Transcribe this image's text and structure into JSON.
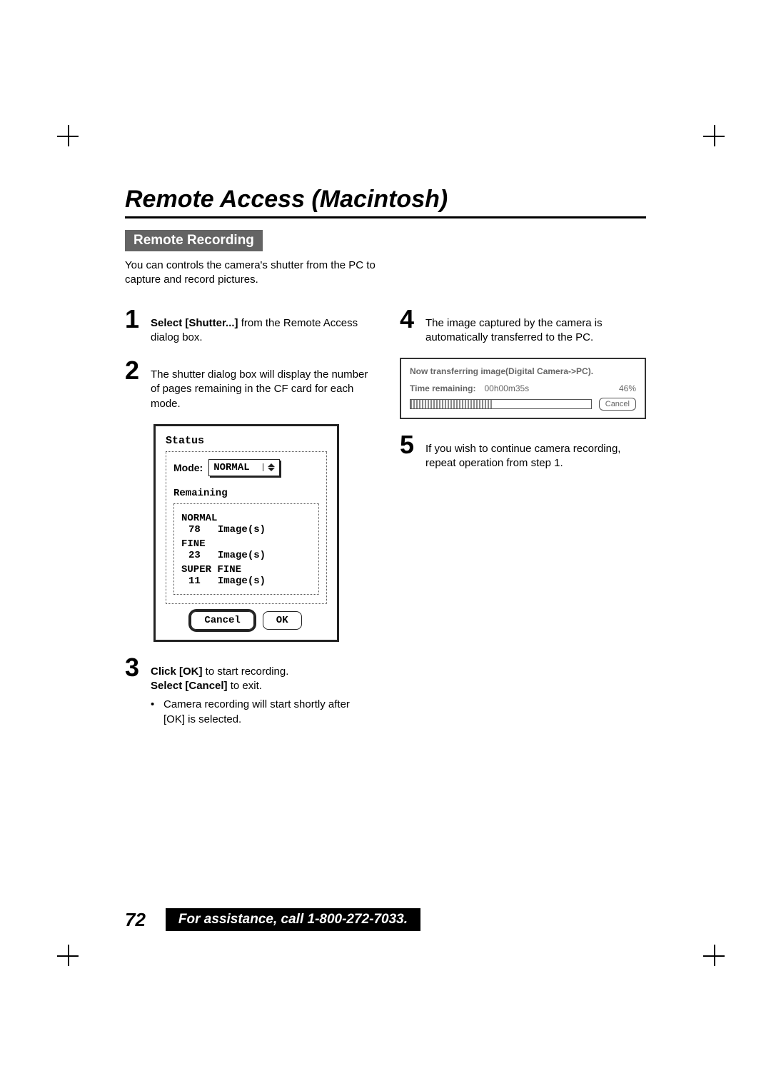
{
  "title": "Remote Access (Macintosh)",
  "section_label": "Remote Recording",
  "intro": "You can controls the camera's shutter from the PC to capture and record pictures.",
  "step1": {
    "bold": "Select [Shutter...]",
    "rest": "  from the Remote Access dialog box."
  },
  "step2": "The shutter dialog box will display the number of pages remaining in the CF card for each mode.",
  "step3": {
    "l1b": "Click [OK]",
    "l1r": " to start recording.",
    "l2b": "Select [Cancel]",
    "l2r": " to exit."
  },
  "step3_bullet": "Camera recording will start shortly after [OK] is selected.",
  "step4": "The image captured by the camera is automatically transferred to the PC.",
  "step5": "If you wish to continue camera recording, repeat operation from step 1.",
  "status_dialog": {
    "title": "Status",
    "mode_label": "Mode:",
    "mode_value": "NORMAL",
    "remain_label": "Remaining",
    "rows": [
      {
        "name": "NORMAL",
        "count": "78",
        "unit": "Image(s)"
      },
      {
        "name": "FINE",
        "count": "23",
        "unit": "Image(s)"
      },
      {
        "name": "SUPER FINE",
        "count": "11",
        "unit": "Image(s)"
      }
    ],
    "cancel": "Cancel",
    "ok": "OK"
  },
  "xfer_dialog": {
    "title": "Now transferring image(Digital Camera->PC).",
    "time_label": "Time remaining:",
    "time_value": "00h00m35s",
    "percent": "46%",
    "fill_pct": 46,
    "cancel": "Cancel"
  },
  "page_number": "72",
  "assist": "For assistance, call 1-800-272-7033."
}
